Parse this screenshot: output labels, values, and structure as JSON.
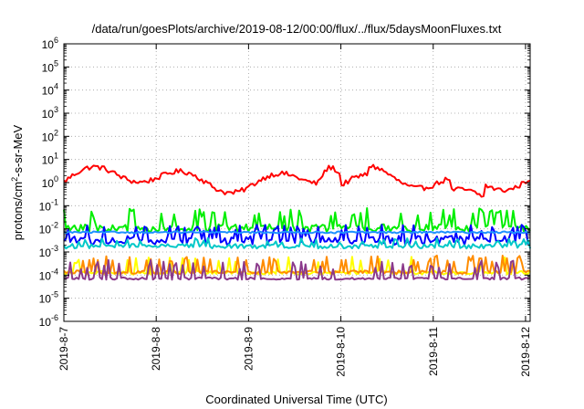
{
  "chart_data": {
    "type": "line",
    "title": "/data/run/goesPlots/archive/2019-08-12/00:00/flux/../flux/5daysMoonFluxes.txt",
    "xlabel": "Coordinated Universal Time (UTC)",
    "ylabel": {
      "base": "protons/cm",
      "sup": "2",
      "rest": "-s-sr-MeV"
    },
    "x_tick_labels": [
      "2019-8-7",
      "2019-8-8",
      "2019-8-9",
      "2019-8-10",
      "2019-8-11",
      "2019-8-12"
    ],
    "y_tick_exponents": [
      -6,
      -5,
      -4,
      -3,
      -2,
      -1,
      0,
      1,
      2,
      3,
      4,
      5,
      6
    ],
    "y_tick_base": "10",
    "xlim_days": [
      0,
      5.05
    ],
    "ylim_log10": [
      -6,
      6
    ],
    "y_scale": "log",
    "grid": true,
    "series": [
      {
        "color": "#ff0000",
        "pattern": "red",
        "base_log": 0.15
      },
      {
        "color": "#00ee00",
        "pattern": "green",
        "base_log": -1.85
      },
      {
        "color": "#0000ff",
        "pattern": "blue",
        "base_log": -2.35
      },
      {
        "color": "#1e90ff",
        "pattern": "flat",
        "base_log": -2.15
      },
      {
        "color": "#00c8c8",
        "pattern": "cyan",
        "base_log": -2.75
      },
      {
        "color": "#ffff00",
        "pattern": "yellow",
        "base_log": -3.9
      },
      {
        "color": "#ff8c00",
        "pattern": "orange",
        "base_log": -3.75
      },
      {
        "color": "#8b3a8b",
        "pattern": "purple",
        "base_log": -4.1
      }
    ]
  }
}
